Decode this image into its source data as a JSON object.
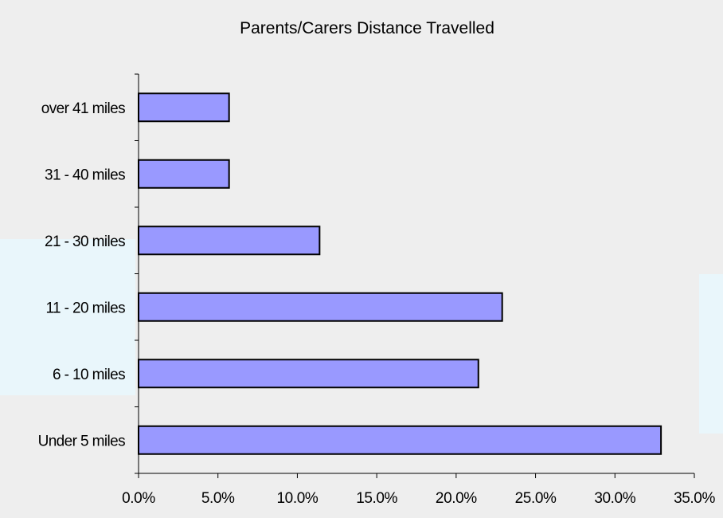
{
  "chart_data": {
    "type": "bar",
    "orientation": "horizontal",
    "title": "Parents/Carers Distance Travelled",
    "categories": [
      "over 41 miles",
      "31 - 40 miles",
      "21 - 30 miles",
      "11 - 20 miles",
      "6 - 10 miles",
      "Under 5 miles"
    ],
    "values": [
      5.7,
      5.7,
      11.4,
      22.9,
      21.4,
      32.9
    ],
    "value_unit": "%",
    "xlim": [
      0,
      35
    ],
    "x_ticks": [
      "0.0%",
      "5.0%",
      "10.0%",
      "15.0%",
      "20.0%",
      "25.0%",
      "30.0%",
      "35.0%"
    ],
    "xlabel": "",
    "ylabel": "",
    "grid": false,
    "legend": "none",
    "colors": {
      "bar_fill": "#9999ff",
      "bar_stroke": "#000000",
      "axis": "#000000",
      "background": "#eeeeee"
    }
  }
}
